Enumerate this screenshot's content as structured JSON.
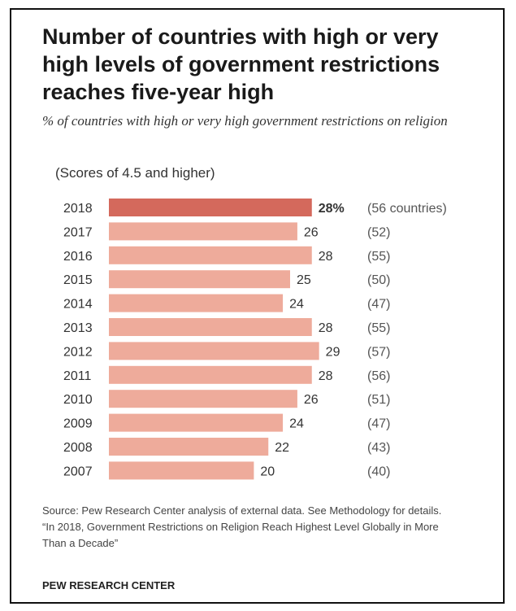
{
  "header": {
    "title": "Number of countries with high or very high levels of government restrictions reaches five-year high",
    "subtitle": "% of countries with high or very high government restrictions on religion",
    "scores_note": "(Scores of 4.5 and higher)"
  },
  "chart_data": {
    "type": "bar",
    "orientation": "horizontal",
    "categories": [
      "2018",
      "2017",
      "2016",
      "2015",
      "2014",
      "2013",
      "2012",
      "2011",
      "2010",
      "2009",
      "2008",
      "2007"
    ],
    "values": [
      28,
      26,
      28,
      25,
      24,
      28,
      29,
      28,
      26,
      24,
      22,
      20
    ],
    "value_labels": [
      "28%",
      "26",
      "28",
      "25",
      "24",
      "28",
      "29",
      "28",
      "26",
      "24",
      "22",
      "20"
    ],
    "count_labels": [
      "(56 countries)",
      "(52)",
      "(55)",
      "(50)",
      "(47)",
      "(55)",
      "(57)",
      "(56)",
      "(51)",
      "(47)",
      "(43)",
      "(40)"
    ],
    "highlight_index": 0,
    "colors": {
      "highlight": "#d4695c",
      "bar": "#eeab9b"
    },
    "xlim": [
      0,
      29
    ],
    "grid": false
  },
  "footer": {
    "source_line1": "Source: Pew Research Center analysis of external data. See Methodology for details.",
    "source_line2": "“In 2018, Government Restrictions on Religion Reach Highest Level Globally in More Than a Decade”",
    "brand": "PEW RESEARCH CENTER"
  }
}
